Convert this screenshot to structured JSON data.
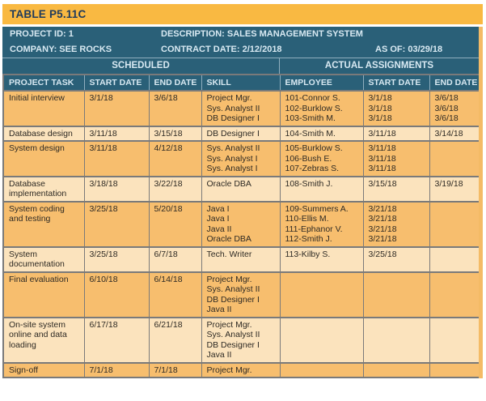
{
  "title": "TABLE P5.11C",
  "info": {
    "project_id": "PROJECT ID: 1",
    "description": "DESCRIPTION: SALES MANAGEMENT SYSTEM",
    "company": "COMPANY: SEE ROCKS",
    "contract_date": "CONTRACT DATE: 2/12/2018",
    "as_of": "AS OF: 03/29/18"
  },
  "section_headers": {
    "scheduled": "SCHEDULED",
    "actual": "ACTUAL ASSIGNMENTS"
  },
  "column_headers": [
    "PROJECT TASK",
    "START DATE",
    "END DATE",
    "SKILL",
    "EMPLOYEE",
    "START DATE",
    "END DATE"
  ],
  "colors": {
    "banner_orange": "#F9B942",
    "header_teal": "#2A6078",
    "header_text": "#D8E9F2",
    "header_separator": "#8FAEBE",
    "title_text": "#1E3A5C",
    "row_dark": "#F7BE6E",
    "row_light": "#FBE3BD",
    "grid_border": "#7A7A7A",
    "right_strip": "#F4BB66"
  },
  "rows": [
    {
      "task": "Initial interview",
      "start": "3/1/18",
      "end": "3/6/18",
      "skills": [
        "Project Mgr.",
        "Sys. Analyst II",
        "DB Designer I"
      ],
      "employees": [
        "101-Connor S.",
        "102-Burklow S.",
        "103-Smith M."
      ],
      "actual_starts": [
        "3/1/18",
        "3/1/18",
        "3/1/18"
      ],
      "actual_ends": [
        "3/6/18",
        "3/6/18",
        "3/6/18"
      ]
    },
    {
      "task": "Database design",
      "start": "3/11/18",
      "end": "3/15/18",
      "skills": [
        "DB Designer I"
      ],
      "employees": [
        "104-Smith M."
      ],
      "actual_starts": [
        "3/11/18"
      ],
      "actual_ends": [
        "3/14/18"
      ]
    },
    {
      "task": "System design",
      "start": "3/11/18",
      "end": "4/12/18",
      "skills": [
        "Sys. Analyst II",
        "Sys. Analyst I",
        "Sys. Analyst I"
      ],
      "employees": [
        "105-Burklow S.",
        "106-Bush E.",
        "107-Zebras S."
      ],
      "actual_starts": [
        "3/11/18",
        "3/11/18",
        "3/11/18"
      ],
      "actual_ends": []
    },
    {
      "task": "Database implementation",
      "start": "3/18/18",
      "end": "3/22/18",
      "skills": [
        "Oracle DBA"
      ],
      "employees": [
        "108-Smith J."
      ],
      "actual_starts": [
        "3/15/18"
      ],
      "actual_ends": [
        "3/19/18"
      ]
    },
    {
      "task": "System coding and testing",
      "start": "3/25/18",
      "end": "5/20/18",
      "skills": [
        "Java I",
        "Java I",
        "Java II",
        "Oracle DBA"
      ],
      "employees": [
        "109-Summers A.",
        "110-Ellis M.",
        "111-Ephanor V.",
        "112-Smith J."
      ],
      "actual_starts": [
        "3/21/18",
        "3/21/18",
        "3/21/18",
        "3/21/18"
      ],
      "actual_ends": []
    },
    {
      "task": "System documentation",
      "start": "3/25/18",
      "end": "6/7/18",
      "skills": [
        "Tech. Writer"
      ],
      "employees": [
        "113-Kilby S."
      ],
      "actual_starts": [
        "3/25/18"
      ],
      "actual_ends": []
    },
    {
      "task": "Final evaluation",
      "start": "6/10/18",
      "end": "6/14/18",
      "skills": [
        "Project Mgr.",
        "Sys. Analyst II",
        "DB Designer I",
        "Java II"
      ],
      "employees": [],
      "actual_starts": [],
      "actual_ends": []
    },
    {
      "task": "On-site system online and data loading",
      "start": "6/17/18",
      "end": "6/21/18",
      "skills": [
        "Project Mgr.",
        "Sys. Analyst II",
        "DB Designer I",
        "Java II"
      ],
      "employees": [],
      "actual_starts": [],
      "actual_ends": []
    },
    {
      "task": "Sign-off",
      "start": "7/1/18",
      "end": "7/1/18",
      "skills": [
        "Project Mgr."
      ],
      "employees": [],
      "actual_starts": [],
      "actual_ends": []
    }
  ]
}
